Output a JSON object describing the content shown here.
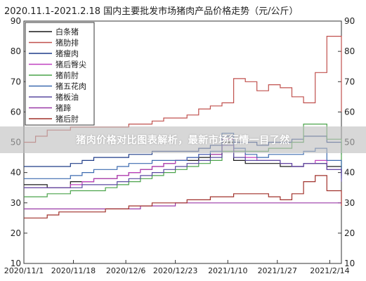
{
  "banner": {
    "text": "猪肉价格对比图表解析，最新市场行情一目了然"
  },
  "chart_data": {
    "type": "line",
    "title": "2020.11.1-2021.2.18 国内主要批发市场猪肉产品价格走势（元/公斤）",
    "x_ticks": [
      "2020/11/1",
      "2020/11/18",
      "2020/12/6",
      "2020/12/23",
      "2021/1/10",
      "2021/1/27",
      "2021/2/14"
    ],
    "x": [
      "2020/11/1",
      "2020/11/5",
      "2020/11/9",
      "2020/11/13",
      "2020/11/17",
      "2020/11/21",
      "2020/11/25",
      "2020/11/29",
      "2020/12/3",
      "2020/12/7",
      "2020/12/11",
      "2020/12/15",
      "2020/12/19",
      "2020/12/23",
      "2020/12/27",
      "2020/12/31",
      "2021/1/4",
      "2021/1/8",
      "2021/1/12",
      "2021/1/16",
      "2021/1/20",
      "2021/1/24",
      "2021/1/28",
      "2021/2/1",
      "2021/2/5",
      "2021/2/9",
      "2021/2/13",
      "2021/2/18"
    ],
    "ylim": [
      10,
      90
    ],
    "y_ticks": [
      10,
      20,
      30,
      40,
      50,
      60,
      70,
      80,
      90
    ],
    "grid": false,
    "legend": "top-left",
    "series": [
      {
        "name": "白条猪",
        "color": "#1a1a1a",
        "values": [
          36,
          36,
          35,
          35,
          37,
          37,
          38,
          38,
          39,
          40,
          41,
          42,
          43,
          44,
          44,
          45,
          46,
          50,
          44,
          43,
          43,
          43,
          42,
          42,
          43,
          43,
          42,
          40
        ]
      },
      {
        "name": "猪肋排",
        "color": "#c0504d",
        "values": [
          50,
          52,
          54,
          54,
          55,
          55,
          55,
          55,
          55,
          56,
          56,
          57,
          58,
          58,
          59,
          61,
          62,
          63,
          71,
          70,
          67,
          69,
          68,
          65,
          63,
          73,
          85,
          60
        ]
      },
      {
        "name": "猪瘦肉",
        "color": "#1f3c88",
        "values": [
          42,
          42,
          42,
          42,
          43,
          44,
          45,
          45,
          45,
          46,
          46,
          47,
          47,
          47,
          47,
          48,
          49,
          52,
          50,
          50,
          49,
          50,
          50,
          51,
          52,
          52,
          50,
          46
        ]
      },
      {
        "name": "猪后臀尖",
        "color": "#c040c0",
        "values": [
          35,
          35,
          35,
          35,
          36,
          37,
          38,
          38,
          39,
          40,
          41,
          42,
          43,
          44,
          45,
          46,
          46,
          51,
          47,
          45,
          44,
          44,
          43,
          42,
          43,
          44,
          41,
          39
        ]
      },
      {
        "name": "猪前肘",
        "color": "#4aa34a",
        "values": [
          32,
          32,
          33,
          33,
          34,
          34,
          34,
          35,
          36,
          37,
          38,
          39,
          40,
          41,
          42,
          43,
          44,
          47,
          47,
          47,
          47,
          48,
          48,
          50,
          56,
          56,
          51,
          42
        ]
      },
      {
        "name": "猪五花肉",
        "color": "#3d6bb0",
        "values": [
          38,
          38,
          38,
          38,
          39,
          40,
          41,
          41,
          42,
          43,
          43,
          44,
          44,
          44,
          45,
          46,
          47,
          53,
          48,
          46,
          45,
          46,
          46,
          46,
          47,
          48,
          44,
          38
        ]
      },
      {
        "name": "猪板油",
        "color": "#5a4aa0",
        "values": [
          35,
          35,
          35,
          35,
          35,
          36,
          36,
          36,
          37,
          38,
          39,
          40,
          41,
          42,
          43,
          44,
          45,
          49,
          45,
          44,
          44,
          44,
          43,
          42,
          43,
          43,
          41,
          37
        ]
      },
      {
        "name": "猪蹄",
        "color": "#9a3aa8",
        "values": [
          28,
          28,
          28,
          28,
          28,
          28,
          28,
          28,
          28,
          28,
          29,
          29,
          29,
          30,
          30,
          30,
          30,
          30,
          30,
          30,
          30,
          30,
          30,
          30,
          30,
          30,
          30,
          30
        ]
      },
      {
        "name": "猪后肘",
        "color": "#a0302a",
        "values": [
          25,
          25,
          26,
          27,
          27,
          27,
          27,
          28,
          28,
          29,
          29,
          30,
          30,
          30,
          31,
          31,
          32,
          32,
          33,
          33,
          33,
          32,
          31,
          33,
          37,
          39,
          34,
          29
        ]
      }
    ]
  }
}
